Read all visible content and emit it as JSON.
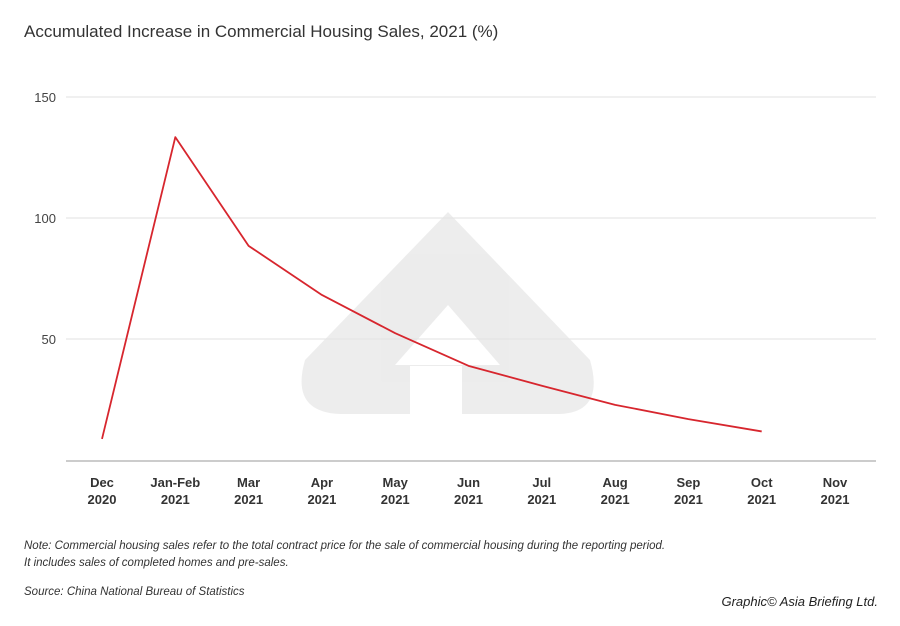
{
  "chart_data": {
    "type": "line",
    "title": "Accumulated Increase in Commercial Housing Sales, 2021 (%)",
    "categories": [
      [
        "Dec",
        "2020"
      ],
      [
        "Jan-Feb",
        "2021"
      ],
      [
        "Mar",
        "2021"
      ],
      [
        "Apr",
        "2021"
      ],
      [
        "May",
        "2021"
      ],
      [
        "Jun",
        "2021"
      ],
      [
        "Jul",
        "2021"
      ],
      [
        "Aug",
        "2021"
      ],
      [
        "Sep",
        "2021"
      ],
      [
        "Oct",
        "2021"
      ],
      [
        "Nov",
        "2021"
      ]
    ],
    "values": [
      8.7,
      133.4,
      88.5,
      68.2,
      52.4,
      38.9,
      30.7,
      22.8,
      16.9,
      11.8,
      null
    ],
    "yticks": [
      50,
      100,
      150
    ],
    "ylim": [
      0,
      150
    ],
    "grid": true,
    "line_color": "#d7262e",
    "xlabel": "",
    "ylabel": ""
  },
  "note_line1": "Note: Commercial housing sales refer to the total contract price for the sale of commercial housing during the reporting period.",
  "note_line2": "It includes sales of completed homes and pre-sales.",
  "source": "Source: China National Bureau of Statistics",
  "credit": "Graphic© Asia Briefing Ltd."
}
